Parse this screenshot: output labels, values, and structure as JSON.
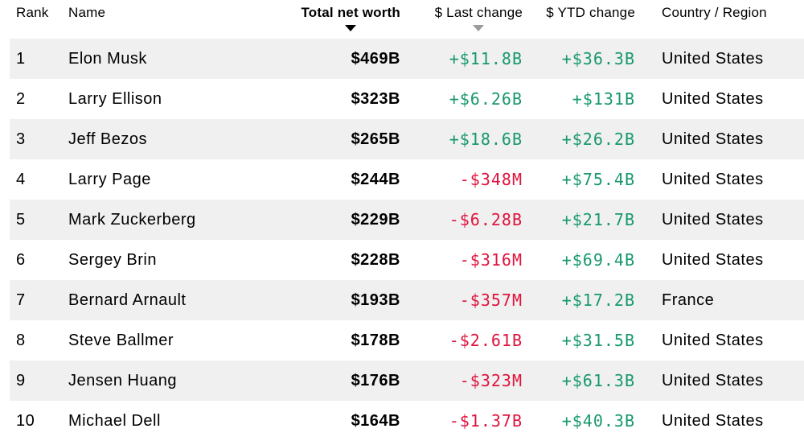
{
  "colors": {
    "positive": "#17996b",
    "negative": "#e0133d",
    "row_alt": "#f0f0f0",
    "sort_active": "#000000",
    "sort_inactive": "#9b9b9b"
  },
  "table": {
    "columns": [
      {
        "key": "rank",
        "label": "Rank",
        "align": "left",
        "sortable": false
      },
      {
        "key": "name",
        "label": "Name",
        "align": "left",
        "sortable": false
      },
      {
        "key": "net_worth",
        "label": "Total net worth",
        "align": "right",
        "sortable": true,
        "sort_indicator": "active-desc"
      },
      {
        "key": "last_change",
        "label": "$ Last change",
        "align": "right",
        "sortable": true,
        "sort_indicator": "inactive-desc"
      },
      {
        "key": "ytd_change",
        "label": "$ YTD change",
        "align": "right",
        "sortable": true,
        "sort_indicator": "none"
      },
      {
        "key": "country",
        "label": "Country / Region",
        "align": "left",
        "sortable": false
      }
    ],
    "rows": [
      {
        "rank": "1",
        "name": "Elon Musk",
        "net_worth": "$469B",
        "last_change": "+$11.8B",
        "ytd_change": "+$36.3B",
        "country": "United States"
      },
      {
        "rank": "2",
        "name": "Larry Ellison",
        "net_worth": "$323B",
        "last_change": "+$6.26B",
        "ytd_change": "+$131B",
        "country": "United States"
      },
      {
        "rank": "3",
        "name": "Jeff Bezos",
        "net_worth": "$265B",
        "last_change": "+$18.6B",
        "ytd_change": "+$26.2B",
        "country": "United States"
      },
      {
        "rank": "4",
        "name": "Larry Page",
        "net_worth": "$244B",
        "last_change": "-$348M",
        "ytd_change": "+$75.4B",
        "country": "United States"
      },
      {
        "rank": "5",
        "name": "Mark Zuckerberg",
        "net_worth": "$229B",
        "last_change": "-$6.28B",
        "ytd_change": "+$21.7B",
        "country": "United States"
      },
      {
        "rank": "6",
        "name": "Sergey Brin",
        "net_worth": "$228B",
        "last_change": "-$316M",
        "ytd_change": "+$69.4B",
        "country": "United States"
      },
      {
        "rank": "7",
        "name": "Bernard Arnault",
        "net_worth": "$193B",
        "last_change": "-$357M",
        "ytd_change": "+$17.2B",
        "country": "France"
      },
      {
        "rank": "8",
        "name": "Steve Ballmer",
        "net_worth": "$178B",
        "last_change": "-$2.61B",
        "ytd_change": "+$31.5B",
        "country": "United States"
      },
      {
        "rank": "9",
        "name": "Jensen Huang",
        "net_worth": "$176B",
        "last_change": "-$323M",
        "ytd_change": "+$61.3B",
        "country": "United States"
      },
      {
        "rank": "10",
        "name": "Michael Dell",
        "net_worth": "$164B",
        "last_change": "-$1.37B",
        "ytd_change": "+$40.3B",
        "country": "United States"
      }
    ]
  }
}
